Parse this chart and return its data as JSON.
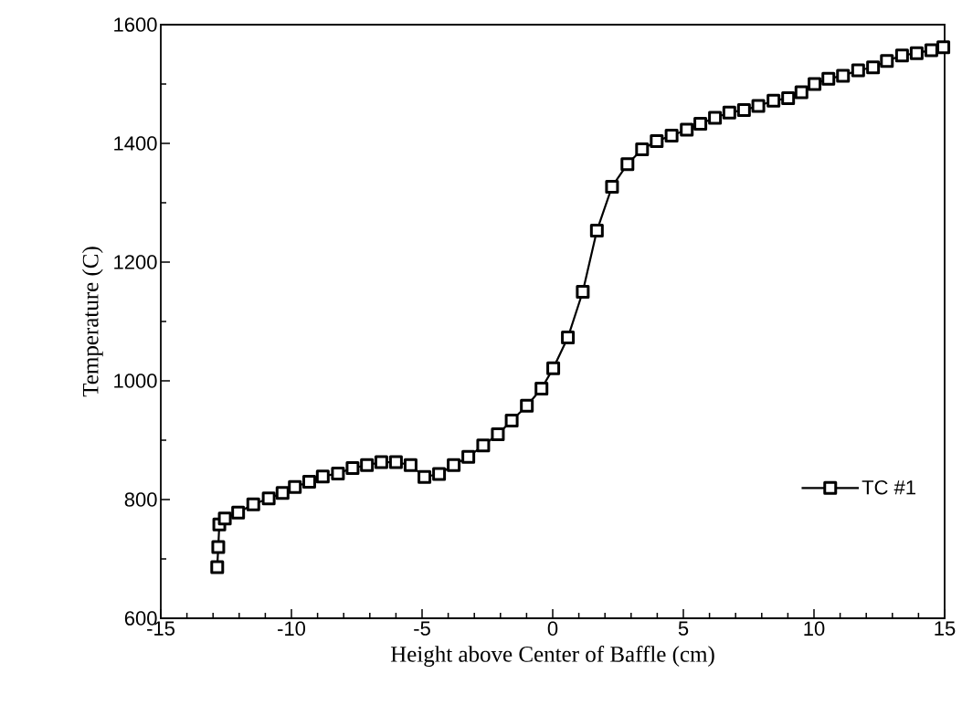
{
  "chart_data": {
    "type": "line",
    "xlabel": "Height above Center of Baffle (cm)",
    "ylabel": "Temperature   (C)",
    "xlim": [
      -15,
      15
    ],
    "ylim": [
      600,
      1600
    ],
    "xticks": [
      -15,
      -10,
      -5,
      0,
      5,
      10,
      15
    ],
    "yticks": [
      600,
      800,
      1000,
      1200,
      1400,
      1600
    ],
    "grid": false,
    "legend": "bottom right",
    "marker": "square",
    "line_style": "solid",
    "series": [
      {
        "name": "TC #1",
        "color": "#000000",
        "x": [
          -12.84,
          -12.8,
          -12.76,
          -12.55,
          -12.04,
          -11.46,
          -10.87,
          -10.34,
          -9.87,
          -9.32,
          -8.8,
          -8.22,
          -7.66,
          -7.11,
          -6.56,
          -6.0,
          -5.44,
          -4.91,
          -4.35,
          -3.79,
          -3.23,
          -2.66,
          -2.1,
          -1.57,
          -0.99,
          -0.43,
          0.02,
          0.58,
          1.15,
          1.69,
          2.27,
          2.86,
          3.42,
          3.98,
          4.55,
          5.13,
          5.65,
          6.21,
          6.76,
          7.32,
          7.87,
          8.45,
          9.01,
          9.52,
          10.02,
          10.55,
          11.11,
          11.69,
          12.26,
          12.79,
          13.37,
          13.93,
          14.49,
          14.95
        ],
        "values": [
          686,
          720,
          758,
          768,
          778,
          792,
          802,
          811,
          821,
          830,
          839,
          844,
          853,
          858,
          863,
          863,
          858,
          838,
          843,
          858,
          872,
          891,
          910,
          933,
          958,
          987,
          1021,
          1073,
          1150,
          1253,
          1327,
          1365,
          1390,
          1404,
          1413,
          1423,
          1433,
          1443,
          1452,
          1456,
          1463,
          1472,
          1476,
          1486,
          1500,
          1509,
          1514,
          1523,
          1528,
          1539,
          1548,
          1552,
          1557,
          1562
        ]
      }
    ]
  }
}
